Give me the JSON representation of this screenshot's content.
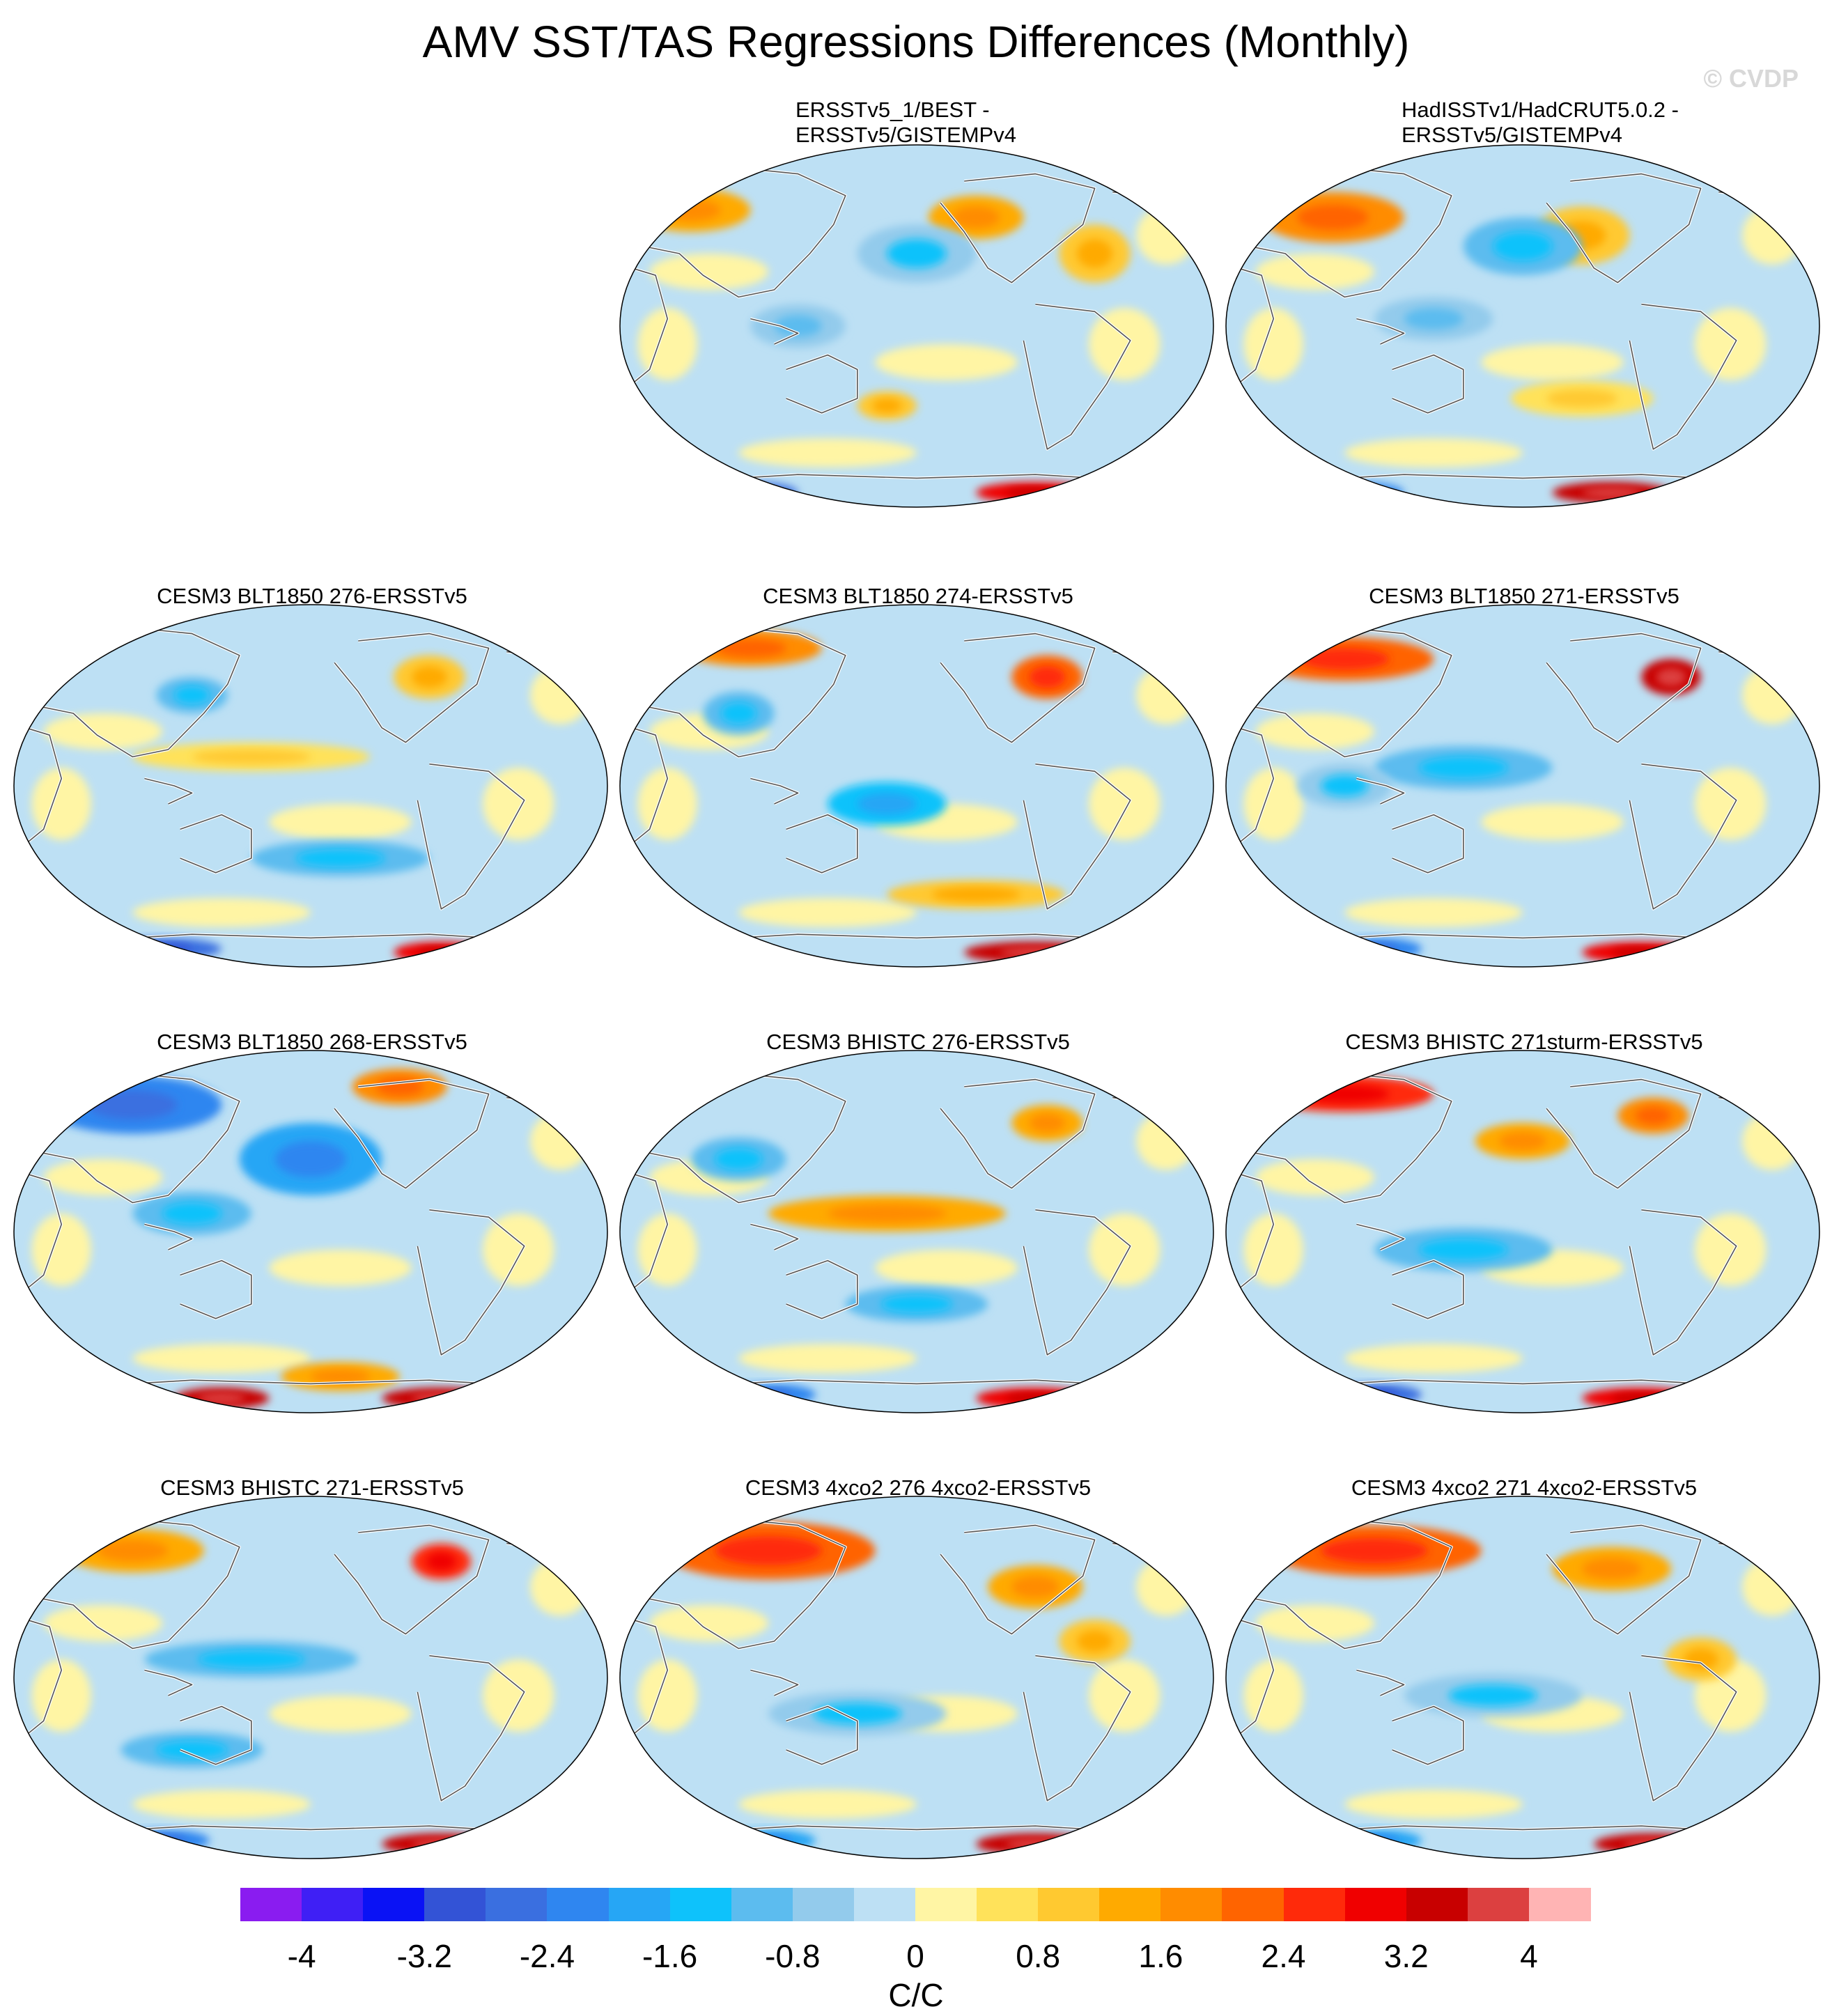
{
  "figure": {
    "title": "AMV SST/TAS Regressions Differences (Monthly)",
    "watermark": "© CVDP"
  },
  "chart_data": {
    "type": "heatmap",
    "title": "AMV SST/TAS Regressions Differences (Monthly)",
    "projection": "global map (Robinson)",
    "panels": [
      {
        "id": "p1",
        "row": 0,
        "col": 1,
        "title_lines": [
          "ERSSTv5_1/BEST -",
          "ERSSTv5/GISTEMPv4"
        ],
        "blobs": [
          [
            0.12,
            0.18,
            0.1,
            0.06,
            1.5
          ],
          [
            0.6,
            0.2,
            0.08,
            0.06,
            1.2
          ],
          [
            0.8,
            0.3,
            0.06,
            0.08,
            0.9
          ],
          [
            0.5,
            0.3,
            0.1,
            0.08,
            -0.8
          ],
          [
            0.3,
            0.5,
            0.08,
            0.06,
            -0.6
          ],
          [
            0.45,
            0.72,
            0.05,
            0.04,
            0.8
          ],
          [
            0.22,
            0.96,
            0.08,
            0.03,
            -2.6
          ],
          [
            0.7,
            0.96,
            0.1,
            0.03,
            3.0
          ]
        ]
      },
      {
        "id": "p2",
        "row": 0,
        "col": 2,
        "title_lines": [
          "HadISSTv1/HadCRUT5.0.2 -",
          "ERSSTv5/GISTEMPv4"
        ],
        "blobs": [
          [
            0.18,
            0.2,
            0.12,
            0.07,
            1.8
          ],
          [
            0.6,
            0.25,
            0.08,
            0.08,
            0.8
          ],
          [
            0.5,
            0.28,
            0.1,
            0.08,
            -1.2
          ],
          [
            0.35,
            0.48,
            0.1,
            0.06,
            -0.7
          ],
          [
            0.6,
            0.7,
            0.12,
            0.05,
            0.6
          ],
          [
            0.22,
            0.96,
            0.08,
            0.03,
            -2.4
          ],
          [
            0.65,
            0.96,
            0.1,
            0.03,
            3.2
          ]
        ]
      },
      {
        "id": "p3",
        "row": 1,
        "col": 0,
        "title_lines": [
          "CESM3 BLT1850 276-ERSSTv5"
        ],
        "blobs": [
          [
            0.4,
            0.42,
            0.2,
            0.04,
            0.6
          ],
          [
            0.3,
            0.25,
            0.06,
            0.05,
            -1.0
          ],
          [
            0.7,
            0.2,
            0.06,
            0.06,
            0.8
          ],
          [
            0.55,
            0.7,
            0.15,
            0.05,
            -1.2
          ],
          [
            0.25,
            0.95,
            0.1,
            0.03,
            -2.8
          ],
          [
            0.72,
            0.96,
            0.08,
            0.03,
            3.0
          ]
        ]
      },
      {
        "id": "p4",
        "row": 1,
        "col": 1,
        "title_lines": [
          "CESM3 BLT1850 274-ERSSTv5"
        ],
        "blobs": [
          [
            0.22,
            0.12,
            0.12,
            0.05,
            1.8
          ],
          [
            0.72,
            0.2,
            0.06,
            0.06,
            2.2
          ],
          [
            0.45,
            0.55,
            0.1,
            0.06,
            -1.3
          ],
          [
            0.2,
            0.3,
            0.06,
            0.06,
            -1.2
          ],
          [
            0.6,
            0.8,
            0.15,
            0.04,
            0.8
          ],
          [
            0.7,
            0.96,
            0.12,
            0.03,
            3.2
          ]
        ]
      },
      {
        "id": "p5",
        "row": 1,
        "col": 2,
        "title_lines": [
          "CESM3 BLT1850 271-ERSSTv5"
        ],
        "blobs": [
          [
            0.2,
            0.15,
            0.15,
            0.06,
            2.0
          ],
          [
            0.75,
            0.2,
            0.05,
            0.05,
            3.4
          ],
          [
            0.4,
            0.45,
            0.15,
            0.06,
            -0.9
          ],
          [
            0.2,
            0.5,
            0.08,
            0.06,
            -0.8
          ],
          [
            0.7,
            0.96,
            0.1,
            0.03,
            3.0
          ],
          [
            0.25,
            0.95,
            0.08,
            0.03,
            -2.2
          ]
        ]
      },
      {
        "id": "p6",
        "row": 2,
        "col": 0,
        "title_lines": [
          "CESM3 BLT1850 268-ERSSTv5"
        ],
        "blobs": [
          [
            0.2,
            0.15,
            0.15,
            0.08,
            -2.4
          ],
          [
            0.5,
            0.3,
            0.12,
            0.1,
            -1.8
          ],
          [
            0.65,
            0.1,
            0.08,
            0.05,
            1.6
          ],
          [
            0.3,
            0.45,
            0.1,
            0.06,
            -1.0
          ],
          [
            0.55,
            0.9,
            0.1,
            0.04,
            1.2
          ],
          [
            0.35,
            0.96,
            0.08,
            0.03,
            3.2
          ],
          [
            0.72,
            0.96,
            0.1,
            0.03,
            3.4
          ]
        ]
      },
      {
        "id": "p7",
        "row": 2,
        "col": 1,
        "title_lines": [
          "CESM3 BHISTC 276-ERSSTv5"
        ],
        "blobs": [
          [
            0.45,
            0.45,
            0.2,
            0.05,
            1.4
          ],
          [
            0.2,
            0.3,
            0.08,
            0.06,
            -1.2
          ],
          [
            0.5,
            0.7,
            0.12,
            0.05,
            -1.0
          ],
          [
            0.72,
            0.2,
            0.06,
            0.05,
            1.4
          ],
          [
            0.7,
            0.96,
            0.1,
            0.03,
            3.0
          ],
          [
            0.25,
            0.95,
            0.08,
            0.03,
            -2.4
          ]
        ]
      },
      {
        "id": "p8",
        "row": 2,
        "col": 2,
        "title_lines": [
          "CESM3 BHISTC 271sturm-ERSSTv5"
        ],
        "blobs": [
          [
            0.2,
            0.12,
            0.15,
            0.05,
            2.6
          ],
          [
            0.5,
            0.25,
            0.08,
            0.05,
            1.4
          ],
          [
            0.72,
            0.18,
            0.06,
            0.05,
            1.6
          ],
          [
            0.4,
            0.55,
            0.15,
            0.06,
            -0.9
          ],
          [
            0.25,
            0.95,
            0.08,
            0.03,
            -2.8
          ],
          [
            0.7,
            0.96,
            0.1,
            0.03,
            3.0
          ]
        ]
      },
      {
        "id": "p9",
        "row": 3,
        "col": 0,
        "title_lines": [
          "CESM3 BHISTC 271-ERSSTv5"
        ],
        "blobs": [
          [
            0.2,
            0.15,
            0.12,
            0.06,
            1.5
          ],
          [
            0.72,
            0.18,
            0.05,
            0.05,
            2.6
          ],
          [
            0.4,
            0.45,
            0.18,
            0.05,
            -0.9
          ],
          [
            0.3,
            0.7,
            0.12,
            0.05,
            -1.0
          ],
          [
            0.25,
            0.95,
            0.08,
            0.03,
            -2.4
          ],
          [
            0.72,
            0.96,
            0.1,
            0.03,
            3.4
          ]
        ]
      },
      {
        "id": "p10",
        "row": 3,
        "col": 1,
        "title_lines": [
          "CESM3 4xco2 276 4xco2-ERSSTv5"
        ],
        "blobs": [
          [
            0.25,
            0.15,
            0.18,
            0.08,
            2.0
          ],
          [
            0.7,
            0.25,
            0.08,
            0.06,
            1.2
          ],
          [
            0.4,
            0.6,
            0.15,
            0.06,
            -0.8
          ],
          [
            0.8,
            0.4,
            0.06,
            0.06,
            1.0
          ],
          [
            0.25,
            0.95,
            0.08,
            0.03,
            -2.0
          ],
          [
            0.7,
            0.96,
            0.1,
            0.03,
            3.2
          ]
        ]
      },
      {
        "id": "p11",
        "row": 3,
        "col": 2,
        "title_lines": [
          "CESM3 4xco2 271 4xco2-ERSSTv5"
        ],
        "blobs": [
          [
            0.25,
            0.15,
            0.18,
            0.07,
            2.2
          ],
          [
            0.65,
            0.2,
            0.1,
            0.06,
            1.2
          ],
          [
            0.45,
            0.55,
            0.15,
            0.06,
            -0.8
          ],
          [
            0.8,
            0.45,
            0.06,
            0.06,
            0.9
          ],
          [
            0.25,
            0.95,
            0.08,
            0.03,
            -2.0
          ],
          [
            0.72,
            0.96,
            0.1,
            0.03,
            3.2
          ]
        ]
      }
    ],
    "colorbar": {
      "units": "C/C",
      "levels": [
        -4.4,
        -4,
        -3.6,
        -3.2,
        -2.8,
        -2.4,
        -2,
        -1.6,
        -1.2,
        -0.8,
        -0.4,
        0,
        0.4,
        0.8,
        1.2,
        1.6,
        2,
        2.4,
        2.8,
        3.2,
        3.6,
        4,
        4.4
      ],
      "colors": [
        "#8a1cf0",
        "#3f1ff5",
        "#0a12f5",
        "#3353d6",
        "#3a6fe0",
        "#2f86f0",
        "#26a6f5",
        "#0ec2fb",
        "#5cbcef",
        "#93cbec",
        "#bde0f4",
        "#fff5a4",
        "#ffe25a",
        "#ffc930",
        "#ffaa00",
        "#ff8c00",
        "#ff6400",
        "#ff2a0a",
        "#f00000",
        "#c80000",
        "#dc4040",
        "#ffb4b4"
      ],
      "tick_values": [
        -4,
        -3.2,
        -2.4,
        -1.6,
        -0.8,
        0,
        0.8,
        1.6,
        2.4,
        3.2,
        4
      ],
      "tick_labels": [
        "-4",
        "-3.2",
        "-2.4",
        "-1.6",
        "-0.8",
        "0",
        "0.8",
        "1.6",
        "2.4",
        "3.2",
        "4"
      ]
    }
  }
}
